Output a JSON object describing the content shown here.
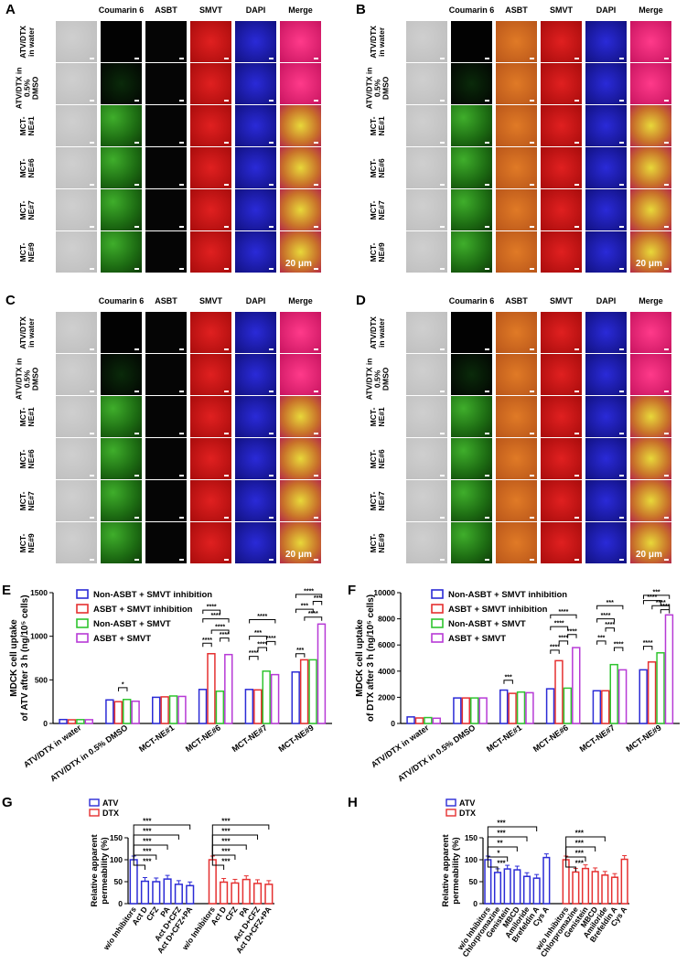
{
  "micrographs": {
    "columns": [
      "Coumarin 6",
      "ASBT",
      "SMVT",
      "DAPI",
      "Merge"
    ],
    "rows": [
      "ATV/DTX\nin water",
      "ATV/DTX in\n0.5% DMSO",
      "MCT-\nNE#1",
      "MCT-\nNE#6",
      "MCT-\nNE#7",
      "MCT-\nNE#9"
    ],
    "scale_bar": "20 μm",
    "panels": [
      {
        "letter": "A",
        "asbt_color": "#050505"
      },
      {
        "letter": "B",
        "asbt_color": "#d2691e"
      },
      {
        "letter": "C",
        "asbt_color": "#050505"
      },
      {
        "letter": "D",
        "asbt_color": "#d2691e"
      }
    ]
  },
  "chart_data": [
    {
      "panel": "E",
      "type": "bar",
      "ylabel_line1": "MDCK cell uptake",
      "ylabel_line2": "of ATV after 3 h (ng/10⁵ cells)",
      "ylim": [
        0,
        1500
      ],
      "yticks": [
        "0",
        "500",
        "1000",
        "1500"
      ],
      "categories": [
        "ATV/DTX in water",
        "ATV/DTX in 0.5% DMSO",
        "MCT-NE#1",
        "MCT-NE#6",
        "MCT-NE#7",
        "MCT-NE#9"
      ],
      "series": [
        {
          "name": "Non-ASBT + SMVT inhibition",
          "color": "#2b2bd6",
          "values": [
            45,
            270,
            300,
            390,
            390,
            590
          ]
        },
        {
          "name": "ASBT + SMVT inhibition",
          "color": "#e53030",
          "values": [
            42,
            250,
            305,
            800,
            385,
            730
          ]
        },
        {
          "name": "Non-ASBT + SMVT",
          "color": "#2fc42f",
          "values": [
            44,
            275,
            315,
            370,
            600,
            730
          ]
        },
        {
          "name": "ASBT + SMVT",
          "color": "#b73ad6",
          "values": [
            43,
            255,
            310,
            790,
            560,
            1140
          ]
        }
      ],
      "annotations": [
        "*",
        "****",
        "****",
        "****",
        "****",
        "****",
        "****",
        "****",
        "***",
        "****",
        "****",
        "***",
        "****",
        "***",
        "***",
        "****"
      ]
    },
    {
      "panel": "F",
      "type": "bar",
      "ylabel_line1": "MDCK cell uptake",
      "ylabel_line2": "of DTX after 3 h (ng/10⁵ cells)",
      "ylim": [
        0,
        10000
      ],
      "yticks": [
        "0",
        "2000",
        "4000",
        "6000",
        "8000",
        "10000"
      ],
      "categories": [
        "ATV/DTX in water",
        "ATV/DTX in 0.5% DMSO",
        "MCT-NE#1",
        "MCT-NE#6",
        "MCT-NE#7",
        "MCT-NE#9"
      ],
      "series": [
        {
          "name": "Non-ASBT + SMVT inhibition",
          "color": "#2b2bd6",
          "values": [
            500,
            1950,
            2550,
            2650,
            2500,
            4100
          ]
        },
        {
          "name": "ASBT + SMVT inhibition",
          "color": "#e53030",
          "values": [
            420,
            1950,
            2300,
            4800,
            2500,
            4700
          ]
        },
        {
          "name": "Non-ASBT + SMVT",
          "color": "#2fc42f",
          "values": [
            450,
            1950,
            2400,
            2700,
            4500,
            5400
          ]
        },
        {
          "name": "ASBT + SMVT",
          "color": "#b73ad6",
          "values": [
            400,
            1950,
            2350,
            5800,
            4100,
            8300
          ]
        }
      ],
      "annotations": [
        "***",
        "****",
        "****",
        "****",
        "****",
        "****",
        "***",
        "****",
        "****",
        "****",
        "***",
        "****",
        "****",
        "****",
        "****",
        "***"
      ]
    },
    {
      "panel": "G",
      "type": "bar",
      "ylabel_line1": "Relative apparent",
      "ylabel_line2": "permeability (%)",
      "ylim": [
        0,
        150
      ],
      "yticks": [
        "0",
        "50",
        "100",
        "150"
      ],
      "legend": [
        {
          "name": "ATV",
          "color": "#2b2bd6"
        },
        {
          "name": "DTX",
          "color": "#e53030"
        }
      ],
      "groups": [
        {
          "series": "ATV",
          "color": "#2b2bd6",
          "categories": [
            "w/o Inhibitors",
            "Act D",
            "CFZ",
            "PA",
            "Act D+CFZ",
            "Act D+CFZ+PA"
          ],
          "values": [
            100,
            51,
            50,
            56,
            44,
            41
          ]
        },
        {
          "series": "DTX",
          "color": "#e53030",
          "categories": [
            "w/o Inhibitors",
            "Act D",
            "CFZ",
            "PA",
            "Act D+CFZ",
            "Act D+CFZ+PA"
          ],
          "values": [
            100,
            49,
            47,
            55,
            46,
            44
          ]
        }
      ],
      "annotations": [
        "***",
        "***",
        "***",
        "***",
        "***",
        "***",
        "***",
        "***",
        "***",
        "***"
      ]
    },
    {
      "panel": "H",
      "type": "bar",
      "ylabel_line1": "Relative apparent",
      "ylabel_line2": "permeability (%)",
      "ylim": [
        0,
        150
      ],
      "yticks": [
        "0",
        "50",
        "100",
        "150"
      ],
      "legend": [
        {
          "name": "ATV",
          "color": "#2b2bd6"
        },
        {
          "name": "DTX",
          "color": "#e53030"
        }
      ],
      "groups": [
        {
          "series": "ATV",
          "color": "#2b2bd6",
          "categories": [
            "w/o Inhibitors",
            "Chlorpromazine",
            "Genistein",
            "MBCD",
            "Amiloride",
            "Brefeldin A",
            "Cys A"
          ],
          "values": [
            100,
            71,
            79,
            77,
            62,
            58,
            105
          ]
        },
        {
          "series": "DTX",
          "color": "#e53030",
          "categories": [
            "w/o Inhibitors",
            "Chlorpromazine",
            "Genistein",
            "MBCD",
            "Amiloride",
            "Brefeldin A",
            "Cys A"
          ],
          "values": [
            100,
            72,
            80,
            73,
            65,
            60,
            101
          ]
        }
      ],
      "annotations": [
        "***",
        "*",
        "**",
        "***",
        "***",
        "***",
        "***",
        "***",
        "***"
      ]
    }
  ]
}
